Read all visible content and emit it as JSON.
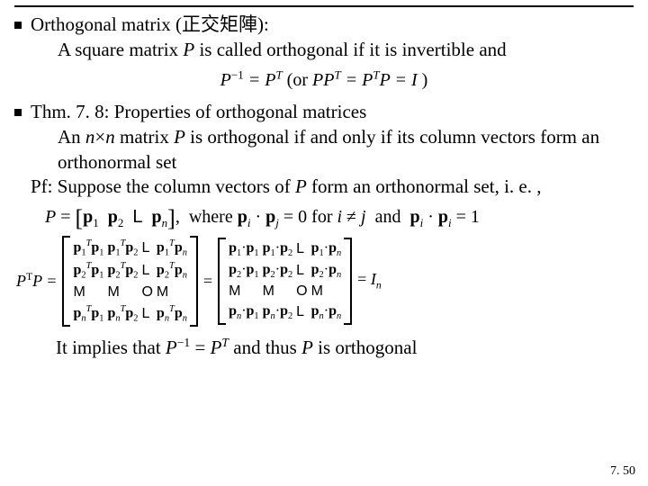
{
  "hr_color": "#000000",
  "bullets": [
    {
      "title": "Orthogonal matrix (正交矩陣):",
      "body": "A square matrix <span class=\"ital\">P</span> is called orthogonal if it is invertible and"
    },
    {
      "title": "Thm. 7. 8: Properties of orthogonal matrices",
      "body1": "An <span class=\"ital\">n</span>×<span class=\"ital\">n</span> matrix <span class=\"ital\">P</span> is orthogonal if and only if its column vectors form an orthonormal set",
      "pf": "Pf: Suppose the column vectors of <span class=\"ital\">P</span> form an orthonormal set, i. e. ,"
    }
  ],
  "formula1_html": "<span class=\"ital\">P</span><sup>&minus;1</sup> = <span class=\"ital\">P</span><sup><span class=\"ital\">T</span></sup> <span class=\"up\">(or</span> <span class=\"ital\">PP</span><sup><span class=\"ital\">T</span></sup> = <span class=\"ital\">P</span><sup><span class=\"ital\">T</span></sup><span class=\"ital\">P</span> = <span class=\"ital\">I</span> <span class=\"up\">)</span>",
  "pline_html": "<span class=\"ital\">P</span> = <span style=\"font-size:26px;vertical-align:-4px\">[</span><span class=\"pvec\">p</span><sub>1</sub>&nbsp; <span class=\"pvec\">p</span><sub>2</sub>&nbsp; <span class=\"glyph\">L</span>&nbsp; <span class=\"pvec\">p</span><sub><span class=\"ital\">n</span></sub><span style=\"font-size:26px;vertical-align:-4px\">]</span>, &nbsp;where <span class=\"pvec\">p</span><sub><span class=\"ital\">i</span></sub> · <span class=\"pvec\">p</span><sub><span class=\"ital\">j</span></sub> = 0 for <span class=\"ital\">i</span> ≠ <span class=\"ital\">j</span> &nbsp;and&nbsp; <span class=\"pvec\">p</span><sub><span class=\"ital\">i</span></sub> · <span class=\"pvec\">p</span><sub><span class=\"ital\">i</span></sub> = 1",
  "matrixA": [
    [
      "<span class=\"pvec\">p</span><sub>1</sub><sup><i>T</i></sup><span class=\"pvec\">p</span><sub>1</sub>",
      "<span class=\"pvec\">p</span><sub>1</sub><sup><i>T</i></sup><span class=\"pvec\">p</span><sub>2</sub>",
      "<span class=\"glyph\">L</span>",
      "<span class=\"pvec\">p</span><sub>1</sub><sup><i>T</i></sup><span class=\"pvec\">p</span><sub><i>n</i></sub>"
    ],
    [
      "<span class=\"pvec\">p</span><sub>2</sub><sup><i>T</i></sup><span class=\"pvec\">p</span><sub>1</sub>",
      "<span class=\"pvec\">p</span><sub>2</sub><sup><i>T</i></sup><span class=\"pvec\">p</span><sub>2</sub>",
      "<span class=\"glyph\">L</span>",
      "<span class=\"pvec\">p</span><sub>2</sub><sup><i>T</i></sup><span class=\"pvec\">p</span><sub><i>n</i></sub>"
    ],
    [
      "<span class=\"glyph\">M</span>",
      "<span class=\"glyph\">M</span>",
      "<span class=\"glyph\">O</span>",
      "<span class=\"glyph\">M</span>"
    ],
    [
      "<span class=\"pvec\">p</span><sub><i>n</i></sub><sup><i>T</i></sup><span class=\"pvec\">p</span><sub>1</sub>",
      "<span class=\"pvec\">p</span><sub><i>n</i></sub><sup><i>T</i></sup><span class=\"pvec\">p</span><sub>2</sub>",
      "<span class=\"glyph\">L</span>",
      "<span class=\"pvec\">p</span><sub><i>n</i></sub><sup><i>T</i></sup><span class=\"pvec\">p</span><sub><i>n</i></sub>"
    ]
  ],
  "matrixB": [
    [
      "<span class=\"pvec\">p</span><sub>1</sub>·<span class=\"pvec\">p</span><sub>1</sub>",
      "<span class=\"pvec\">p</span><sub>1</sub>·<span class=\"pvec\">p</span><sub>2</sub>",
      "<span class=\"glyph\">L</span>",
      "<span class=\"pvec\">p</span><sub>1</sub>·<span class=\"pvec\">p</span><sub><i>n</i></sub>"
    ],
    [
      "<span class=\"pvec\">p</span><sub>2</sub>·<span class=\"pvec\">p</span><sub>1</sub>",
      "<span class=\"pvec\">p</span><sub>2</sub>·<span class=\"pvec\">p</span><sub>2</sub>",
      "<span class=\"glyph\">L</span>",
      "<span class=\"pvec\">p</span><sub>2</sub>·<span class=\"pvec\">p</span><sub><i>n</i></sub>"
    ],
    [
      "<span class=\"glyph\">M</span>",
      "<span class=\"glyph\">M</span>",
      "<span class=\"glyph\">O</span>",
      "<span class=\"glyph\">M</span>"
    ],
    [
      "<span class=\"pvec\">p</span><sub><i>n</i></sub>·<span class=\"pvec\">p</span><sub>1</sub>",
      "<span class=\"pvec\">p</span><sub><i>n</i></sub>·<span class=\"pvec\">p</span><sub>2</sub>",
      "<span class=\"glyph\">L</span>",
      "<span class=\"pvec\">p</span><sub><i>n</i></sub>·<span class=\"pvec\">p</span><sub><i>n</i></sub>"
    ]
  ],
  "ptp_label": "P<sup>T</sup>P =",
  "rhs_tail": "= <span class=\"ital\">I</span><sub><i>n</i></sub>",
  "conclusion_html": "It implies that <span class=\"ital\">P</span><sup>&minus;1</sup> = <span class=\"ital\">P</span><sup><i>T</i></sup> and thus <span class=\"ital\">P</span> is orthogonal",
  "pagenum": "7. 50",
  "colors": {
    "text": "#000000",
    "bg": "#ffffff"
  },
  "fonts": {
    "family": "Times New Roman",
    "body_pt": 21,
    "formula_pt": 20,
    "matrix_pt": 15
  }
}
